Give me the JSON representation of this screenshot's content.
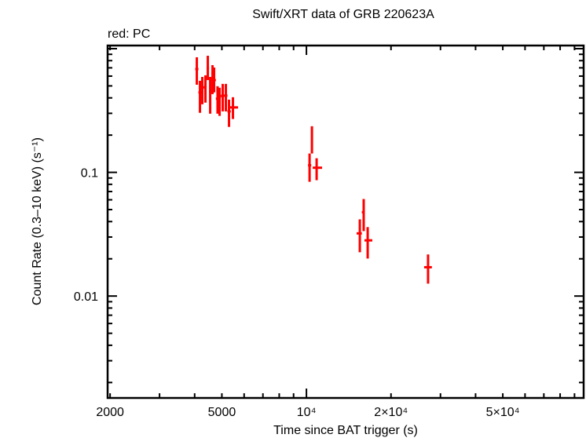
{
  "chart_data": {
    "type": "scatter",
    "title": "Swift/XRT data of GRB 220623A",
    "subtitle": "red: PC",
    "xlabel": "Time since BAT trigger (s)",
    "ylabel": "Count Rate (0.3–10 keV) (s⁻¹)",
    "xscale": "log",
    "yscale": "log",
    "xlim": [
      1960,
      97000
    ],
    "ylim": [
      0.0015,
      1.06
    ],
    "grid": false,
    "color": "#ff0000",
    "x_ticks": [
      {
        "value": 2000,
        "label": "2000"
      },
      {
        "value": 5000,
        "label": "5000"
      },
      {
        "value": 10000,
        "label": "10⁴"
      },
      {
        "value": 20000,
        "label": "2×10⁴"
      },
      {
        "value": 50000,
        "label": "5×10⁴"
      }
    ],
    "y_ticks": [
      {
        "value": 0.1,
        "label": "0.1"
      },
      {
        "value": 0.01,
        "label": "0.01"
      }
    ],
    "series": [
      {
        "name": "PC",
        "points": [
          {
            "x": 4072,
            "xlo": 4020,
            "xhi": 4125,
            "y": 0.684,
            "ylo": 0.511,
            "yhi": 0.852
          },
          {
            "x": 4178,
            "xlo": 4125,
            "xhi": 4230,
            "y": 0.443,
            "ylo": 0.303,
            "yhi": 0.55
          },
          {
            "x": 4259,
            "xlo": 4230,
            "xhi": 4315,
            "y": 0.483,
            "ylo": 0.355,
            "yhi": 0.591
          },
          {
            "x": 4370,
            "xlo": 4315,
            "xhi": 4413,
            "y": 0.49,
            "ylo": 0.366,
            "yhi": 0.609
          },
          {
            "x": 4456,
            "xlo": 4413,
            "xhi": 4500,
            "y": 0.694,
            "ylo": 0.557,
            "yhi": 0.876
          },
          {
            "x": 4543,
            "xlo": 4500,
            "xhi": 4587,
            "y": 0.449,
            "ylo": 0.298,
            "yhi": 0.591
          },
          {
            "x": 4631,
            "xlo": 4587,
            "xhi": 4661,
            "y": 0.636,
            "ylo": 0.429,
            "yhi": 0.736
          },
          {
            "x": 4691,
            "xlo": 4661,
            "xhi": 4760,
            "y": 0.557,
            "ylo": 0.443,
            "yhi": 0.704
          },
          {
            "x": 4826,
            "xlo": 4760,
            "xhi": 4866,
            "y": 0.394,
            "ylo": 0.298,
            "yhi": 0.497
          },
          {
            "x": 4907,
            "xlo": 4866,
            "xhi": 4970,
            "y": 0.411,
            "ylo": 0.286,
            "yhi": 0.483
          },
          {
            "x": 5035,
            "xlo": 4970,
            "xhi": 5100,
            "y": 0.417,
            "ylo": 0.311,
            "yhi": 0.519
          },
          {
            "x": 5166,
            "xlo": 5100,
            "xhi": 5233,
            "y": 0.417,
            "ylo": 0.311,
            "yhi": 0.519
          },
          {
            "x": 5301,
            "xlo": 5233,
            "xhi": 5380,
            "y": 0.311,
            "ylo": 0.233,
            "yhi": 0.387
          },
          {
            "x": 5475,
            "xlo": 5270,
            "xhi": 5710,
            "y": 0.335,
            "ylo": 0.27,
            "yhi": 0.405
          },
          {
            "x": 10260,
            "xlo": 10130,
            "xhi": 10400,
            "y": 0.114,
            "ylo": 0.0839,
            "yhi": 0.142
          },
          {
            "x": 10460,
            "xlo": 10400,
            "xhi": 10530,
            "y": 0.187,
            "ylo": 0.142,
            "yhi": 0.236
          },
          {
            "x": 10870,
            "xlo": 10530,
            "xhi": 11370,
            "y": 0.109,
            "ylo": 0.0864,
            "yhi": 0.13
          },
          {
            "x": 15490,
            "xlo": 15090,
            "xhi": 15750,
            "y": 0.0321,
            "ylo": 0.0226,
            "yhi": 0.0417
          },
          {
            "x": 15990,
            "xlo": 15750,
            "xhi": 16090,
            "y": 0.0476,
            "ylo": 0.0335,
            "yhi": 0.0609
          },
          {
            "x": 16520,
            "xlo": 16090,
            "xhi": 17160,
            "y": 0.0282,
            "ylo": 0.0201,
            "yhi": 0.0361
          },
          {
            "x": 27100,
            "xlo": 26240,
            "xhi": 27960,
            "y": 0.0171,
            "ylo": 0.0126,
            "yhi": 0.0217
          }
        ]
      }
    ]
  }
}
